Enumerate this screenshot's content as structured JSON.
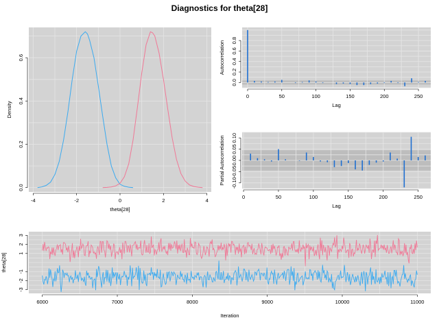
{
  "figure_title": "Diagnostics for theta[28]",
  "colors": {
    "chain1": "#3aaaf0",
    "chain2": "#f07896",
    "panel_bg": "#d3d3d3",
    "grid": "#e6e6e6",
    "band": "#bdbdbd",
    "spike": "#1f6fd1"
  },
  "chart_data": [
    {
      "id": "density",
      "type": "line",
      "title": "",
      "xlabel": "theta[28]",
      "ylabel": "Density",
      "xlim": [
        -4.2,
        4.2
      ],
      "ylim": [
        -0.02,
        0.74
      ],
      "xticks": [
        -4,
        -2,
        0,
        2,
        4
      ],
      "yticks": [
        0.0,
        0.2,
        0.4,
        0.6
      ],
      "ytick_labels": [
        "0.0",
        "0.2",
        "0.4",
        "0.6"
      ],
      "grid": true,
      "series": [
        {
          "color": "#3aaaf0",
          "x": [
            -3.8,
            -3.6,
            -3.4,
            -3.2,
            -3.0,
            -2.8,
            -2.6,
            -2.4,
            -2.2,
            -2.0,
            -1.8,
            -1.6,
            -1.5,
            -1.4,
            -1.2,
            -1.0,
            -0.8,
            -0.6,
            -0.4,
            -0.2,
            0.0,
            0.2,
            0.4,
            0.6
          ],
          "y": [
            0.0,
            0.003,
            0.01,
            0.025,
            0.06,
            0.12,
            0.22,
            0.35,
            0.5,
            0.63,
            0.7,
            0.72,
            0.71,
            0.68,
            0.6,
            0.47,
            0.33,
            0.2,
            0.1,
            0.045,
            0.015,
            0.006,
            0.002,
            0.0
          ]
        },
        {
          "color": "#f07896",
          "x": [
            -0.8,
            -0.6,
            -0.4,
            -0.2,
            0.0,
            0.2,
            0.4,
            0.6,
            0.8,
            1.0,
            1.2,
            1.4,
            1.5,
            1.6,
            1.8,
            2.0,
            2.2,
            2.4,
            2.6,
            2.8,
            3.0,
            3.2,
            3.4,
            3.6,
            3.8
          ],
          "y": [
            0.0,
            0.001,
            0.003,
            0.008,
            0.02,
            0.05,
            0.11,
            0.22,
            0.37,
            0.53,
            0.66,
            0.72,
            0.715,
            0.7,
            0.62,
            0.5,
            0.36,
            0.23,
            0.13,
            0.065,
            0.03,
            0.012,
            0.005,
            0.002,
            0.0
          ]
        }
      ]
    },
    {
      "id": "acf",
      "type": "bar",
      "title": "",
      "xlabel": "Lag",
      "ylabel": "Autocorrelation",
      "xlim": [
        -8,
        268
      ],
      "ylim": [
        -0.1,
        1.05
      ],
      "xticks": [
        0,
        50,
        100,
        150,
        200,
        250
      ],
      "yticks": [
        0.0,
        0.2,
        0.4,
        0.6,
        0.8
      ],
      "ytick_labels": [
        "0.0",
        "0.2",
        "0.4",
        "0.6",
        "0.8"
      ],
      "band": [
        -0.04,
        0.04
      ],
      "grid": true,
      "x": [
        0,
        10,
        20,
        30,
        40,
        50,
        60,
        70,
        80,
        90,
        100,
        110,
        120,
        130,
        140,
        150,
        160,
        170,
        180,
        190,
        200,
        210,
        220,
        230,
        240,
        250,
        260
      ],
      "values": [
        1.0,
        0.03,
        0.02,
        0.01,
        0.02,
        0.05,
        0.0,
        -0.01,
        0.01,
        0.04,
        0.02,
        -0.01,
        0.0,
        -0.03,
        -0.02,
        -0.03,
        -0.05,
        -0.05,
        -0.03,
        -0.02,
        -0.01,
        0.03,
        -0.01,
        -0.07,
        0.08,
        0.01,
        0.03
      ]
    },
    {
      "id": "pacf",
      "type": "bar",
      "title": "",
      "xlabel": "Lag",
      "ylabel": "Partial Autocorrelation",
      "xlim": [
        -2,
        268
      ],
      "ylim": [
        -0.125,
        0.125
      ],
      "xticks": [
        0,
        50,
        100,
        150,
        200,
        250
      ],
      "yticks": [
        -0.1,
        -0.05,
        0.0,
        0.05,
        0.1
      ],
      "ytick_labels": [
        "-0.10",
        "-0.05",
        "0.00",
        "0.05",
        "0.10"
      ],
      "band": [
        -0.045,
        0.045
      ],
      "grid": true,
      "x": [
        10,
        20,
        30,
        40,
        50,
        60,
        70,
        80,
        90,
        100,
        110,
        120,
        130,
        140,
        150,
        160,
        170,
        180,
        190,
        200,
        210,
        220,
        230,
        240,
        250,
        260
      ],
      "values": [
        0.03,
        0.01,
        0.005,
        -0.005,
        0.05,
        0.005,
        0.0,
        -0.002,
        0.035,
        0.015,
        -0.005,
        -0.008,
        -0.03,
        -0.025,
        -0.012,
        -0.04,
        -0.045,
        -0.02,
        -0.01,
        -0.005,
        0.035,
        0.008,
        -0.12,
        0.105,
        0.015,
        0.022
      ]
    },
    {
      "id": "trace",
      "type": "line",
      "title": "",
      "xlabel": "Iteration",
      "ylabel": "theta[28]",
      "xlim": [
        5820,
        11180
      ],
      "ylim": [
        -3.4,
        3.4
      ],
      "xticks": [
        6000,
        7000,
        8000,
        9000,
        10000,
        11000
      ],
      "yticks": [
        -3,
        -2,
        -1,
        1,
        2,
        3
      ],
      "ytick_labels": [
        "-3",
        "-2",
        "-1",
        "1",
        "2",
        "3"
      ],
      "grid": true,
      "x_start": 6000,
      "x_end": 11000,
      "series": [
        {
          "color": "#f07896",
          "mean": 1.5,
          "sd": 0.55
        },
        {
          "color": "#3aaaf0",
          "mean": -1.6,
          "sd": 0.55
        }
      ]
    }
  ]
}
